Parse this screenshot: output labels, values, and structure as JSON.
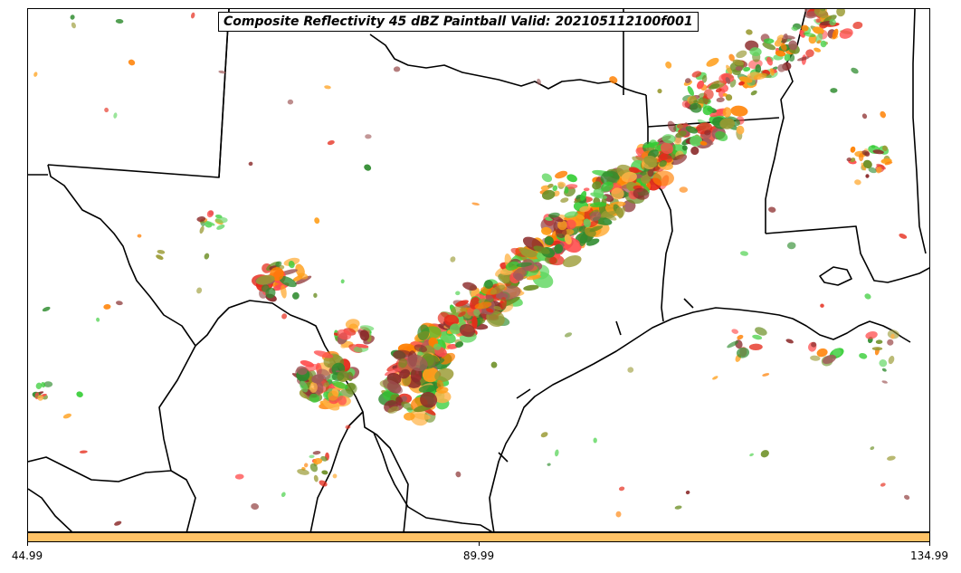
{
  "title": "Composite Reflectivity 45 dBZ Paintball Valid: 202105112100f001",
  "colorbar": {
    "color": "#ffc266",
    "tick_labels": [
      "44.99",
      "89.99",
      "134.99"
    ]
  },
  "map": {
    "region": "Texas / Louisiana / Oklahoma / Arkansas / northern Mexico",
    "boundary_color": "#000000",
    "paintball_colors": [
      "#ff7f00",
      "#ff9f1a",
      "#ffb347",
      "#e52a1a",
      "#ff4d4d",
      "#8b2b2b",
      "#a05a5a",
      "#2e8b2e",
      "#33cc33",
      "#5fd65f",
      "#9a9a33",
      "#6b8e23"
    ]
  }
}
